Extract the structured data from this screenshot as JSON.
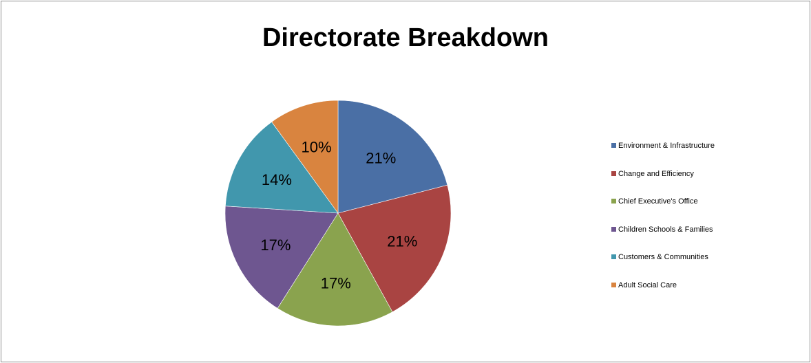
{
  "chart_data": {
    "type": "pie",
    "title": "Directorate Breakdown",
    "legend_position": "right",
    "slices": [
      {
        "name": "Environment & Infrastructure",
        "value": 21,
        "label": "21%",
        "color": "#4a6fa5"
      },
      {
        "name": "Change and Efficiency",
        "value": 21,
        "label": "21%",
        "color": "#a94442"
      },
      {
        "name": "Chief Executive's Office",
        "value": 17,
        "label": "17%",
        "color": "#8aa34e"
      },
      {
        "name": "Children Schools & Families",
        "value": 17,
        "label": "17%",
        "color": "#6e5690"
      },
      {
        "name": "Customers & Communities",
        "value": 14,
        "label": "14%",
        "color": "#4197ad"
      },
      {
        "name": "Adult Social Care",
        "value": 10,
        "label": "10%",
        "color": "#d9843f"
      }
    ]
  }
}
